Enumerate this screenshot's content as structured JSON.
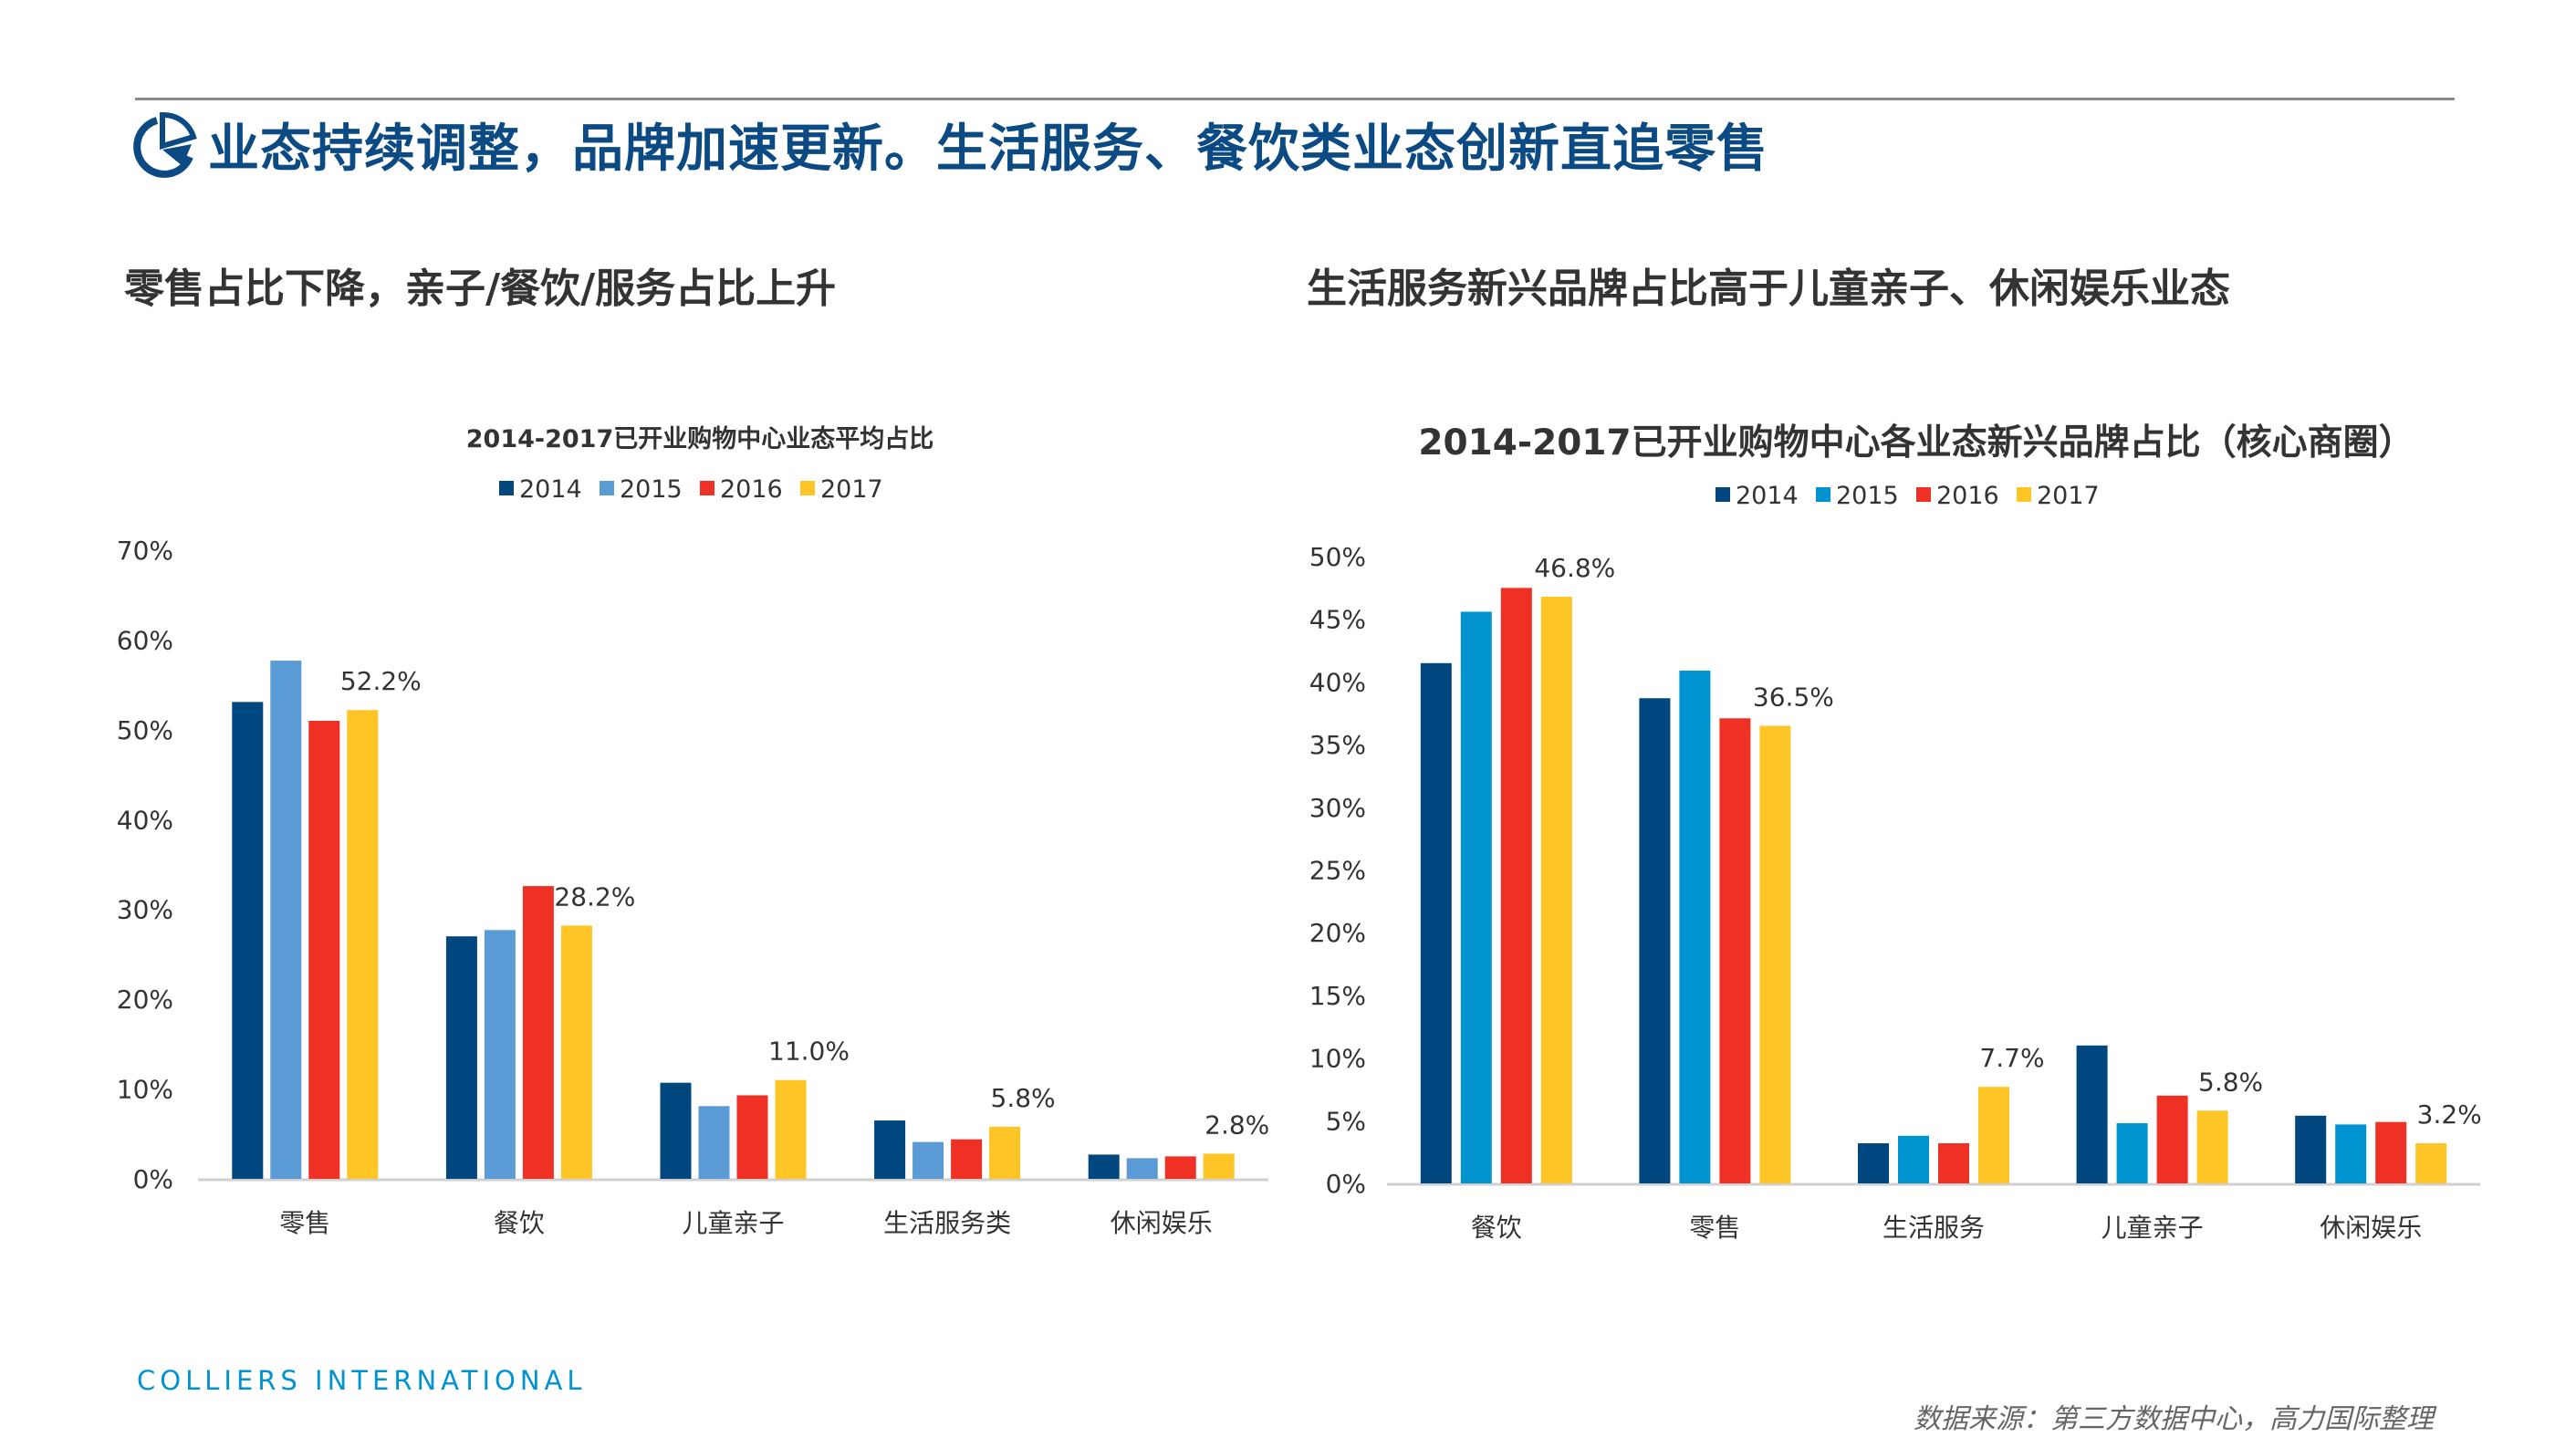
{
  "header": {
    "title": "业态持续调整，品牌加速更新。生活服务、餐饮类业态创新直追零售",
    "icon": "pie-chart-icon"
  },
  "subtitles": {
    "left": "零售占比下降，亲子/餐饮/服务占比上升",
    "right": "生活服务新兴品牌占比高于儿童亲子、休闲娱乐业态"
  },
  "footer": {
    "brand": "COLLIERS INTERNATIONAL",
    "source": "数据来源：第三方数据中心，高力国际整理"
  },
  "colors": {
    "title": "#0b4a82",
    "brand": "#0093d0"
  },
  "chart_data": [
    {
      "type": "bar",
      "title": "2014-2017已开业购物中心业态平均占比",
      "categories": [
        "零售",
        "餐饮",
        "儿童亲子",
        "生活服务类",
        "休闲娱乐"
      ],
      "series": [
        {
          "name": "2014",
          "color": "#00467f",
          "values": [
            53.1,
            27.0,
            10.7,
            6.5,
            2.7
          ]
        },
        {
          "name": "2015",
          "color": "#5b9bd5",
          "values": [
            57.7,
            27.7,
            8.1,
            4.1,
            2.3
          ]
        },
        {
          "name": "2016",
          "color": "#ee3124",
          "values": [
            51.0,
            32.6,
            9.3,
            4.4,
            2.5
          ]
        },
        {
          "name": "2017",
          "color": "#ffc425",
          "values": [
            52.2,
            28.2,
            11.0,
            5.8,
            2.8
          ]
        }
      ],
      "data_labels": {
        "series": "2017",
        "labels": [
          "52.2%",
          "28.2%",
          "11.0%",
          "5.8%",
          "2.8%"
        ]
      },
      "ylim": [
        0,
        70
      ],
      "yticks": [
        "0%",
        "10%",
        "20%",
        "30%",
        "40%",
        "50%",
        "60%",
        "70%"
      ],
      "legend": "top",
      "grid": false
    },
    {
      "type": "bar",
      "title": "2014-2017已开业购物中心各业态新兴品牌占比（核心商圈）",
      "categories": [
        "餐饮",
        "零售",
        "生活服务",
        "儿童亲子",
        "休闲娱乐"
      ],
      "series": [
        {
          "name": "2014",
          "color": "#00467f",
          "values": [
            41.5,
            38.7,
            3.2,
            11.0,
            5.4
          ]
        },
        {
          "name": "2015",
          "color": "#0093d0",
          "values": [
            45.6,
            40.9,
            3.8,
            4.8,
            4.7
          ]
        },
        {
          "name": "2016",
          "color": "#ee3124",
          "values": [
            47.5,
            37.1,
            3.2,
            7.0,
            4.9
          ]
        },
        {
          "name": "2017",
          "color": "#ffc425",
          "values": [
            46.8,
            36.5,
            7.7,
            5.8,
            3.2
          ]
        }
      ],
      "data_labels": {
        "series": "2017",
        "labels": [
          "46.8%",
          "36.5%",
          "7.7%",
          "5.8%",
          "3.2%"
        ]
      },
      "ylim": [
        0,
        50
      ],
      "yticks": [
        "0%",
        "5%",
        "10%",
        "15%",
        "20%",
        "25%",
        "30%",
        "35%",
        "40%",
        "45%",
        "50%"
      ],
      "legend": "top",
      "grid": false
    }
  ]
}
